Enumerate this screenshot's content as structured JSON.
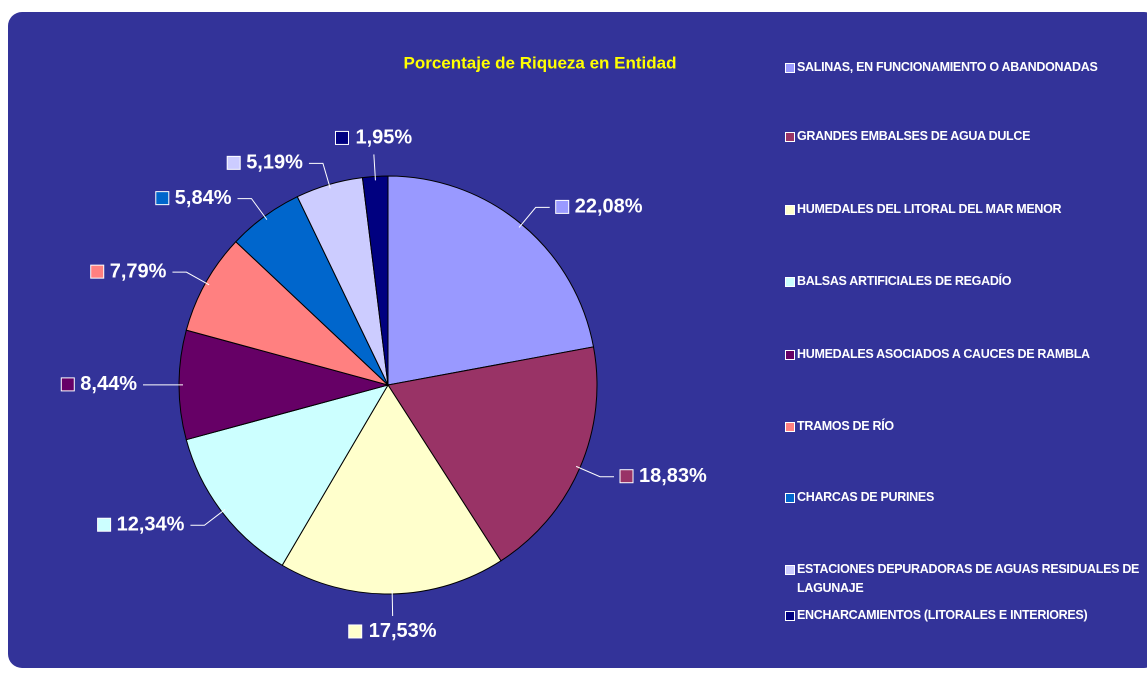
{
  "chart_data": {
    "type": "pie",
    "title": "Porcentaje de Riqueza en Entidad",
    "categories": [
      "SALINAS, EN FUNCIONAMIENTO O ABANDONADAS",
      "GRANDES EMBALSES DE AGUA DULCE",
      "HUMEDALES DEL LITORAL DEL MAR MENOR",
      "BALSAS ARTIFICIALES DE REGADÍO",
      "HUMEDALES ASOCIADOS A CAUCES DE RAMBLA",
      "TRAMOS DE RÍO",
      "CHARCAS DE PURINES",
      "ESTACIONES DEPURADORAS DE AGUAS RESIDUALES DE LAGUNAJE",
      "ENCHARCAMIENTOS (LITORALES E INTERIORES)"
    ],
    "values": [
      22.08,
      18.83,
      17.53,
      12.34,
      8.44,
      7.79,
      5.84,
      5.19,
      1.95
    ],
    "value_labels": [
      "22,08%",
      "18,83%",
      "17,53%",
      "12,34%",
      "8,44%",
      "7,79%",
      "5,84%",
      "5,19%",
      "1,95%"
    ],
    "colors": [
      "#9999ff",
      "#993366",
      "#ffffcc",
      "#ccffff",
      "#660066",
      "#ff8080",
      "#0066cc",
      "#ccccff",
      "#000080"
    ]
  }
}
